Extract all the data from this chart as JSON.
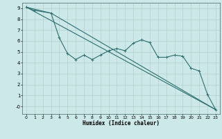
{
  "title": "",
  "xlabel": "Humidex (Indice chaleur)",
  "background_color": "#cce8e8",
  "grid_color": "#b0c8c8",
  "line_color": "#2d6e6e",
  "xlim": [
    -0.5,
    23.5
  ],
  "ylim": [
    -0.7,
    9.5
  ],
  "x_ticks": [
    0,
    1,
    2,
    3,
    4,
    5,
    6,
    7,
    8,
    9,
    10,
    11,
    12,
    13,
    14,
    15,
    16,
    17,
    18,
    19,
    20,
    21,
    22,
    23
  ],
  "y_ticks": [
    0,
    1,
    2,
    3,
    4,
    5,
    6,
    7,
    8,
    9
  ],
  "y_tick_labels": [
    "-0",
    "1",
    "2",
    "3",
    "4",
    "5",
    "6",
    "7",
    "8",
    "9"
  ],
  "line1_x": [
    0,
    1,
    3,
    4,
    5,
    6,
    7,
    8,
    9,
    10,
    11,
    12,
    13,
    14,
    15,
    16,
    17,
    18,
    19,
    20,
    21,
    22,
    23
  ],
  "line1_y": [
    9.1,
    8.8,
    8.55,
    6.3,
    4.85,
    4.3,
    4.7,
    4.3,
    4.7,
    5.1,
    5.3,
    5.1,
    5.8,
    6.1,
    5.85,
    4.5,
    4.5,
    4.7,
    4.6,
    3.5,
    3.25,
    1.1,
    -0.3
  ],
  "line2_x": [
    0,
    23
  ],
  "line2_y": [
    9.1,
    -0.3
  ],
  "line3_x": [
    0,
    3,
    23
  ],
  "line3_y": [
    9.1,
    8.55,
    -0.3
  ]
}
